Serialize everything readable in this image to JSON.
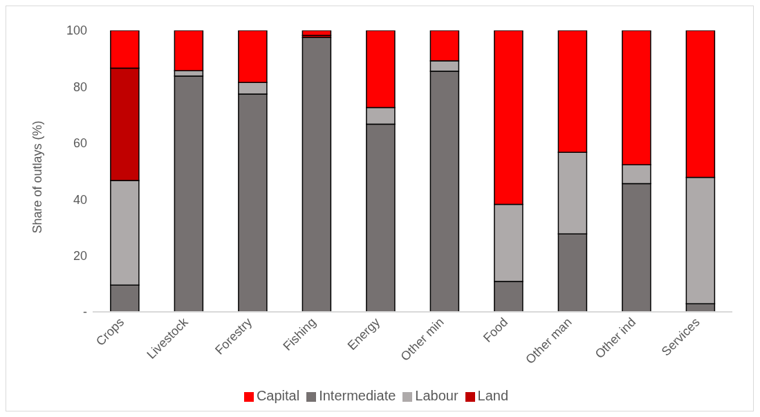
{
  "chart_data": {
    "type": "bar",
    "stacked": true,
    "ylabel": "Share of outlays (%)",
    "categories": [
      "Crops",
      "Livestock",
      "Forestry",
      "Fishing",
      "Energy",
      "Other min",
      "Food",
      "Other man",
      "Other ind",
      "Services"
    ],
    "series": [
      {
        "name": "Intermediate",
        "color": "#767171",
        "values": [
          9.5,
          83.8,
          77.4,
          97.5,
          66.7,
          85.5,
          10.8,
          27.7,
          45.6,
          2.9
        ]
      },
      {
        "name": "Labour",
        "color": "#aeaaaa",
        "values": [
          37.2,
          1.9,
          4.1,
          0,
          5.9,
          3.7,
          27.4,
          29.0,
          6.7,
          44.9
        ]
      },
      {
        "name": "Land",
        "color": "#c00000",
        "values": [
          39.9,
          0,
          0,
          0.7,
          0,
          0,
          0,
          0,
          0,
          0
        ]
      },
      {
        "name": "Capital",
        "color": "#ff0000",
        "values": [
          13.4,
          14.3,
          18.5,
          1.8,
          27.4,
          10.8,
          61.8,
          43.3,
          47.7,
          52.2
        ]
      }
    ],
    "ylim": [
      0,
      100
    ],
    "yticks": [
      {
        "value": 0,
        "label": "-"
      },
      20,
      40,
      60,
      80,
      100
    ],
    "grid": false,
    "legend": "bottom"
  }
}
